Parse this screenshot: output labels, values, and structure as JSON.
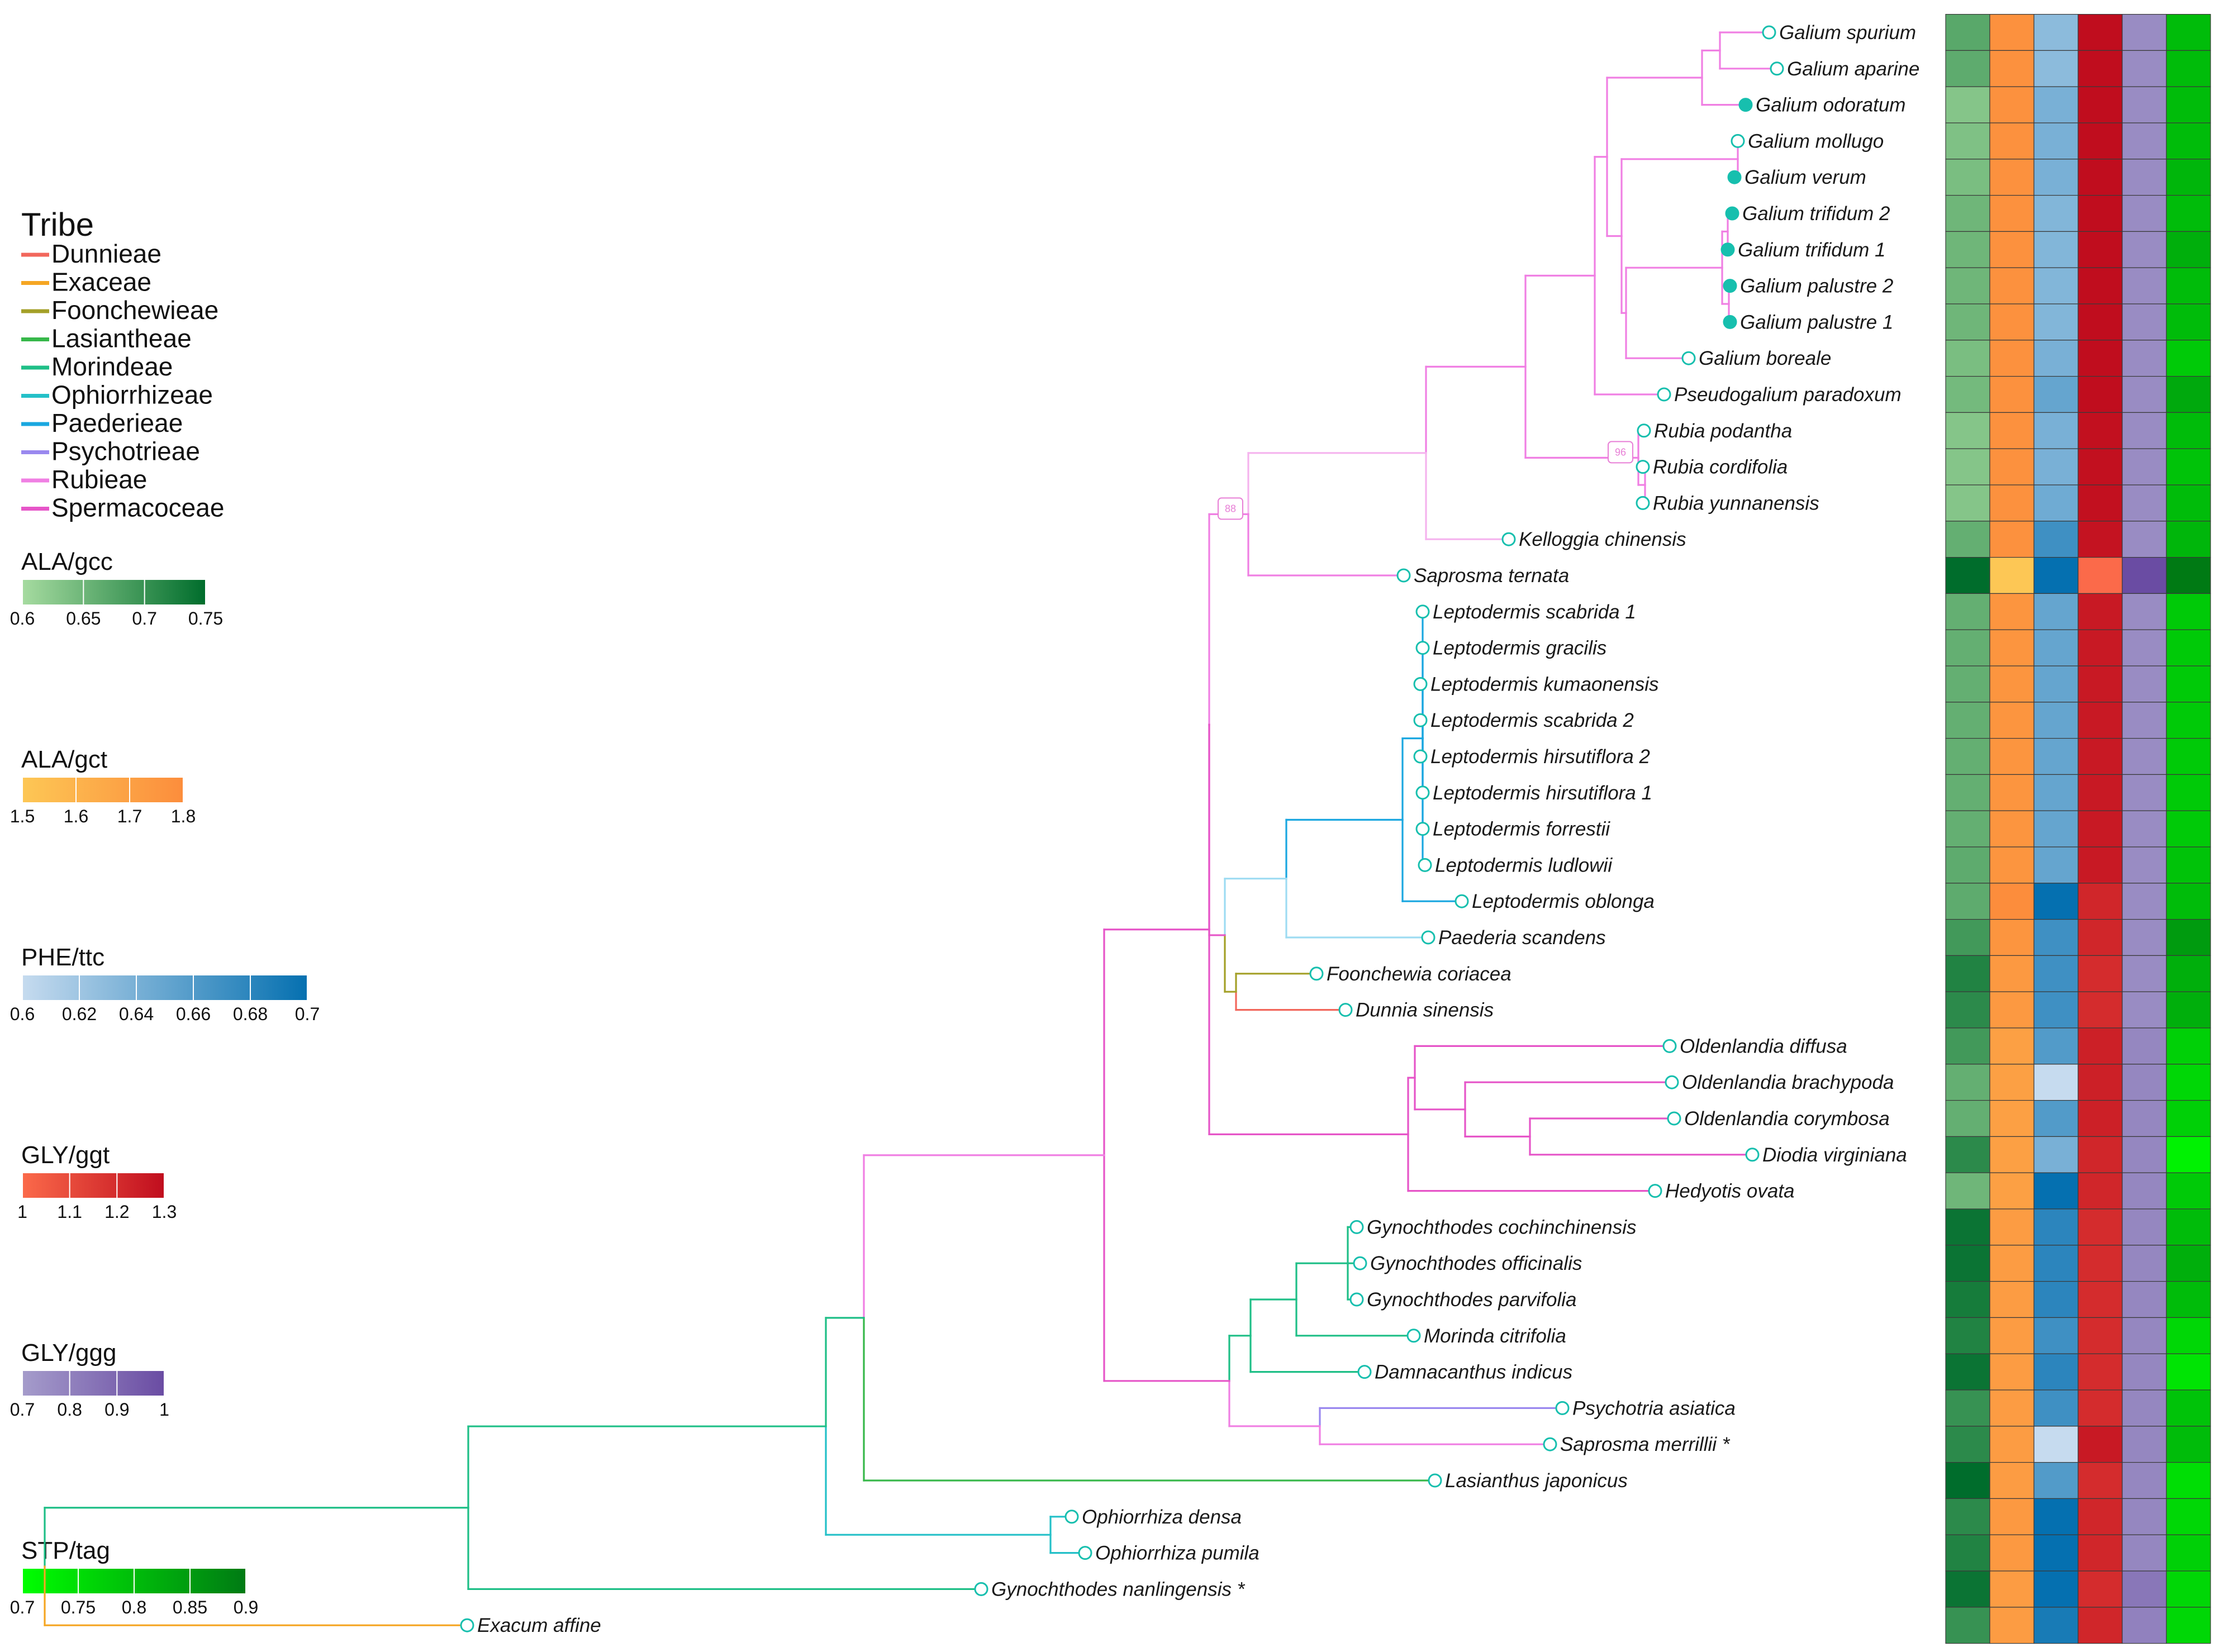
{
  "chart_data": {
    "type": "phylogenetic-tree-heatmap",
    "legend": {
      "title": "Tribe",
      "tribes": [
        {
          "name": "Dunnieae",
          "color": "#f2675c"
        },
        {
          "name": "Exaceae",
          "color": "#f5a623"
        },
        {
          "name": "Foonchewieae",
          "color": "#a4a028"
        },
        {
          "name": "Lasiantheae",
          "color": "#37b84a"
        },
        {
          "name": "Morindeae",
          "color": "#1fbf87"
        },
        {
          "name": "Ophiorrhizeae",
          "color": "#24c0c8"
        },
        {
          "name": "Paederieae",
          "color": "#1aa7e0"
        },
        {
          "name": "Psychotrieae",
          "color": "#9a88ef"
        },
        {
          "name": "Rubieae",
          "color": "#f07fe3"
        },
        {
          "name": "Spermacoceae",
          "color": "#e655c8"
        }
      ]
    },
    "scales": [
      {
        "title": "ALA/gcc",
        "range": [
          0.6,
          0.75
        ],
        "ticks": [
          "0.6",
          "0.65",
          "0.7",
          "0.75"
        ],
        "colors": [
          "#a6dba0",
          "#006d2c"
        ]
      },
      {
        "title": "ALA/gct",
        "range": [
          1.5,
          1.8
        ],
        "ticks": [
          "1.5",
          "1.6",
          "1.7",
          "1.8"
        ],
        "colors": [
          "#fdc755",
          "#fc8d3c"
        ]
      },
      {
        "title": "PHE/ttc",
        "range": [
          0.6,
          0.7
        ],
        "ticks": [
          "0.6",
          "0.62",
          "0.64",
          "0.66",
          "0.68",
          "0.7"
        ],
        "colors": [
          "#c6dbef",
          "#0570b0"
        ]
      },
      {
        "title": "GLY/ggt",
        "range": [
          1.0,
          1.3
        ],
        "ticks": [
          "1",
          "1.1",
          "1.2",
          "1.3"
        ],
        "colors": [
          "#fb6a4a",
          "#c00d1e"
        ]
      },
      {
        "title": "GLY/ggg",
        "range": [
          0.7,
          1.0
        ],
        "ticks": [
          "0.7",
          "0.8",
          "0.9",
          "1"
        ],
        "colors": [
          "#a59ccb",
          "#6a4ca3"
        ]
      },
      {
        "title": "STP/tag",
        "range": [
          0.7,
          0.9
        ],
        "ticks": [
          "0.7",
          "0.75",
          "0.8",
          "0.85",
          "0.9"
        ],
        "colors": [
          "#00ff00",
          "#007a14"
        ]
      }
    ],
    "tips": [
      {
        "name": "Galium spurium",
        "tribe": "Rubieae",
        "filled": false,
        "values": [
          0.67,
          1.78,
          0.63,
          1.3,
          0.76,
          0.8
        ]
      },
      {
        "name": "Galium aparine",
        "tribe": "Rubieae",
        "filled": false,
        "values": [
          0.665,
          1.78,
          0.63,
          1.3,
          0.76,
          0.8
        ]
      },
      {
        "name": "Galium odoratum",
        "tribe": "Rubieae",
        "filled": true,
        "values": [
          0.63,
          1.78,
          0.64,
          1.3,
          0.76,
          0.8
        ]
      },
      {
        "name": "Galium mollugo",
        "tribe": "Rubieae",
        "filled": false,
        "values": [
          0.635,
          1.78,
          0.64,
          1.3,
          0.76,
          0.8
        ]
      },
      {
        "name": "Galium verum",
        "tribe": "Rubieae",
        "filled": true,
        "values": [
          0.64,
          1.78,
          0.64,
          1.3,
          0.76,
          0.81
        ]
      },
      {
        "name": "Galium trifidum 2",
        "tribe": "Rubieae",
        "filled": true,
        "values": [
          0.65,
          1.78,
          0.635,
          1.3,
          0.76,
          0.8
        ]
      },
      {
        "name": "Galium trifidum 1",
        "tribe": "Rubieae",
        "filled": true,
        "values": [
          0.65,
          1.78,
          0.635,
          1.3,
          0.76,
          0.82
        ]
      },
      {
        "name": "Galium palustre 2",
        "tribe": "Rubieae",
        "filled": true,
        "values": [
          0.65,
          1.78,
          0.635,
          1.3,
          0.76,
          0.8
        ]
      },
      {
        "name": "Galium palustre 1",
        "tribe": "Rubieae",
        "filled": true,
        "values": [
          0.65,
          1.78,
          0.635,
          1.3,
          0.76,
          0.8
        ]
      },
      {
        "name": "Galium boreale",
        "tribe": "Rubieae",
        "filled": false,
        "values": [
          0.64,
          1.78,
          0.64,
          1.3,
          0.76,
          0.78
        ]
      },
      {
        "name": "Pseudogalium paradoxum",
        "tribe": "Rubieae",
        "filled": false,
        "values": [
          0.645,
          1.78,
          0.65,
          1.3,
          0.76,
          0.83
        ]
      },
      {
        "name": "Rubia podantha",
        "tribe": "Rubieae",
        "filled": false,
        "values": [
          0.63,
          1.78,
          0.64,
          1.29,
          0.76,
          0.8
        ]
      },
      {
        "name": "Rubia cordifolia",
        "tribe": "Rubieae",
        "filled": false,
        "values": [
          0.63,
          1.78,
          0.64,
          1.29,
          0.76,
          0.79
        ]
      },
      {
        "name": "Rubia yunnanensis",
        "tribe": "Rubieae",
        "filled": false,
        "values": [
          0.63,
          1.78,
          0.645,
          1.29,
          0.76,
          0.8
        ]
      },
      {
        "name": "Kelloggia chinensis",
        "tribe": "Rubieae",
        "filled": false,
        "values": [
          0.66,
          1.78,
          0.67,
          1.28,
          0.76,
          0.81
        ]
      },
      {
        "name": "Saprosma ternata",
        "tribe": "Rubieae",
        "filled": false,
        "values": [
          0.75,
          1.5,
          0.7,
          1.0,
          1.0,
          0.9
        ]
      },
      {
        "name": "Leptodermis scabrida 1",
        "tribe": "Paederieae",
        "filled": false,
        "values": [
          0.66,
          1.76,
          0.65,
          1.26,
          0.76,
          0.78
        ]
      },
      {
        "name": "Leptodermis gracilis",
        "tribe": "Paederieae",
        "filled": false,
        "values": [
          0.66,
          1.76,
          0.65,
          1.26,
          0.76,
          0.78
        ]
      },
      {
        "name": "Leptodermis kumaonensis",
        "tribe": "Paederieae",
        "filled": false,
        "values": [
          0.66,
          1.76,
          0.65,
          1.26,
          0.76,
          0.78
        ]
      },
      {
        "name": "Leptodermis scabrida 2",
        "tribe": "Paederieae",
        "filled": false,
        "values": [
          0.66,
          1.76,
          0.65,
          1.26,
          0.76,
          0.78
        ]
      },
      {
        "name": "Leptodermis hirsutiflora 2",
        "tribe": "Paederieae",
        "filled": false,
        "values": [
          0.66,
          1.76,
          0.65,
          1.26,
          0.76,
          0.78
        ]
      },
      {
        "name": "Leptodermis hirsutiflora 1",
        "tribe": "Paederieae",
        "filled": false,
        "values": [
          0.66,
          1.76,
          0.65,
          1.26,
          0.76,
          0.78
        ]
      },
      {
        "name": "Leptodermis forrestii",
        "tribe": "Paederieae",
        "filled": false,
        "values": [
          0.66,
          1.76,
          0.65,
          1.26,
          0.76,
          0.78
        ]
      },
      {
        "name": "Leptodermis ludlowii",
        "tribe": "Paederieae",
        "filled": false,
        "values": [
          0.665,
          1.76,
          0.65,
          1.26,
          0.76,
          0.79
        ]
      },
      {
        "name": "Leptodermis oblonga",
        "tribe": "Paederieae",
        "filled": false,
        "values": [
          0.665,
          1.8,
          0.7,
          1.22,
          0.76,
          0.8
        ]
      },
      {
        "name": "Paederia scandens",
        "tribe": "Paederieae",
        "filled": false,
        "values": [
          0.69,
          1.76,
          0.67,
          1.22,
          0.76,
          0.85
        ]
      },
      {
        "name": "Foonchewia coriacea",
        "tribe": "Foonchewieae",
        "filled": false,
        "values": [
          0.72,
          1.74,
          0.67,
          1.2,
          0.76,
          0.82
        ]
      },
      {
        "name": "Dunnia sinensis",
        "tribe": "Dunnieae",
        "filled": false,
        "values": [
          0.71,
          1.74,
          0.67,
          1.2,
          0.76,
          0.82
        ]
      },
      {
        "name": "Oldenlandia diffusa",
        "tribe": "Spermacoceae",
        "filled": false,
        "values": [
          0.69,
          1.7,
          0.66,
          1.24,
          0.78,
          0.77
        ]
      },
      {
        "name": "Oldenlandia brachypoda",
        "tribe": "Spermacoceae",
        "filled": false,
        "values": [
          0.66,
          1.7,
          0.6,
          1.24,
          0.78,
          0.76
        ]
      },
      {
        "name": "Oldenlandia corymbosa",
        "tribe": "Spermacoceae",
        "filled": false,
        "values": [
          0.66,
          1.7,
          0.66,
          1.24,
          0.78,
          0.77
        ]
      },
      {
        "name": "Diodia virginiana",
        "tribe": "Spermacoceae",
        "filled": false,
        "values": [
          0.71,
          1.7,
          0.64,
          1.22,
          0.78,
          0.72
        ]
      },
      {
        "name": "Hedyotis ovata",
        "tribe": "Spermacoceae",
        "filled": false,
        "values": [
          0.65,
          1.7,
          0.7,
          1.22,
          0.78,
          0.78
        ]
      },
      {
        "name": "Gynochthodes cochinchinensis",
        "tribe": "Morindeae",
        "filled": false,
        "values": [
          0.74,
          1.72,
          0.68,
          1.2,
          0.78,
          0.8
        ]
      },
      {
        "name": "Gynochthodes officinalis",
        "tribe": "Morindeae",
        "filled": false,
        "values": [
          0.74,
          1.72,
          0.68,
          1.2,
          0.78,
          0.82
        ]
      },
      {
        "name": "Gynochthodes parvifolia",
        "tribe": "Morindeae",
        "filled": false,
        "values": [
          0.73,
          1.72,
          0.68,
          1.2,
          0.78,
          0.8
        ]
      },
      {
        "name": "Morinda citrifolia",
        "tribe": "Morindeae",
        "filled": false,
        "values": [
          0.72,
          1.72,
          0.67,
          1.2,
          0.78,
          0.76
        ]
      },
      {
        "name": "Damnacanthus indicus",
        "tribe": "Morindeae",
        "filled": false,
        "values": [
          0.74,
          1.72,
          0.68,
          1.2,
          0.78,
          0.74
        ]
      },
      {
        "name": "Psychotria asiatica",
        "tribe": "Psychotrieae",
        "filled": false,
        "values": [
          0.7,
          1.72,
          0.67,
          1.2,
          0.78,
          0.79
        ]
      },
      {
        "name": "Saprosma merrillii *",
        "tribe": "Psychotrieae",
        "filled": false,
        "values": [
          0.71,
          1.72,
          0.6,
          1.26,
          0.78,
          0.8
        ]
      },
      {
        "name": "Lasianthus japonicus",
        "tribe": "Lasiantheae",
        "filled": false,
        "values": [
          0.75,
          1.72,
          0.66,
          1.2,
          0.78,
          0.75
        ]
      },
      {
        "name": "Ophiorrhiza densa",
        "tribe": "Ophiorrhizeae",
        "filled": false,
        "values": [
          0.71,
          1.74,
          0.7,
          1.22,
          0.78,
          0.76
        ]
      },
      {
        "name": "Ophiorrhiza pumila",
        "tribe": "Ophiorrhizeae",
        "filled": false,
        "values": [
          0.72,
          1.74,
          0.7,
          1.22,
          0.78,
          0.77
        ]
      },
      {
        "name": "Gynochthodes nanlingensis *",
        "tribe": "Morindeae",
        "filled": false,
        "values": [
          0.74,
          1.72,
          0.7,
          1.2,
          0.84,
          0.76
        ]
      },
      {
        "name": "Exacum affine",
        "tribe": "Exaceae",
        "filled": false,
        "values": [
          0.7,
          1.72,
          0.69,
          1.22,
          0.8,
          0.76
        ]
      }
    ],
    "bootstrap_labels": [
      "88",
      "96"
    ]
  }
}
